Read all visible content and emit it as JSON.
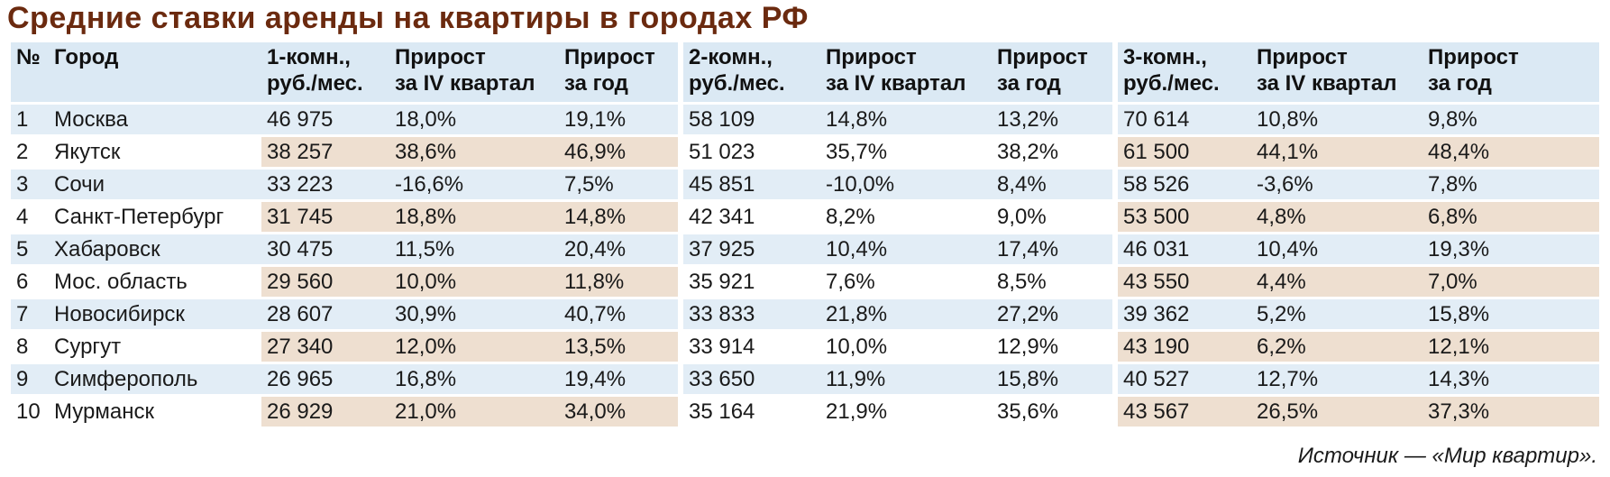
{
  "title": "Средние ставки аренды на квартиры в городах РФ",
  "source": "Источник — «Мир квартир».",
  "table": {
    "headers": [
      [
        "№",
        ""
      ],
      [
        "Город",
        ""
      ],
      [
        "1-комн.,",
        "руб./мес."
      ],
      [
        "Прирост",
        "за IV квартал"
      ],
      [
        "Прирост",
        "за год"
      ],
      [
        "2-комн.,",
        "руб./мес."
      ],
      [
        "Прирост",
        "за IV квартал"
      ],
      [
        "Прирост",
        "за год"
      ],
      [
        "3-комн.,",
        "руб./мес."
      ],
      [
        "Прирост",
        "за IV квартал"
      ],
      [
        "Прирост",
        "за год"
      ]
    ],
    "rows": [
      [
        "1",
        "Москва",
        "46 975",
        "18,0%",
        "19,1%",
        "58 109",
        "14,8%",
        "13,2%",
        "70 614",
        "10,8%",
        "9,8%"
      ],
      [
        "2",
        "Якутск",
        "38 257",
        "38,6%",
        "46,9%",
        "51 023",
        "35,7%",
        "38,2%",
        "61 500",
        "44,1%",
        "48,4%"
      ],
      [
        "3",
        "Сочи",
        "33 223",
        "-16,6%",
        "7,5%",
        "45 851",
        "-10,0%",
        "8,4%",
        "58 526",
        "-3,6%",
        "7,8%"
      ],
      [
        "4",
        "Санкт-Петербург",
        "31 745",
        "18,8%",
        "14,8%",
        "42 341",
        "8,2%",
        "9,0%",
        "53 500",
        "4,8%",
        "6,8%"
      ],
      [
        "5",
        "Хабаровск",
        "30 475",
        "11,5%",
        "20,4%",
        "37 925",
        "10,4%",
        "17,4%",
        "46 031",
        "10,4%",
        "19,3%"
      ],
      [
        "6",
        "Мос. область",
        "29 560",
        "10,0%",
        "11,8%",
        "35 921",
        "7,6%",
        "8,5%",
        "43 550",
        "4,4%",
        "7,0%"
      ],
      [
        "7",
        "Новосибирск",
        "28 607",
        "30,9%",
        "40,7%",
        "33 833",
        "21,8%",
        "27,2%",
        "39 362",
        "5,2%",
        "15,8%"
      ],
      [
        "8",
        "Сургут",
        "27 340",
        "12,0%",
        "13,5%",
        "33 914",
        "10,0%",
        "12,9%",
        "43 190",
        "6,2%",
        "12,1%"
      ],
      [
        "9",
        "Симферополь",
        "26 965",
        "16,8%",
        "19,4%",
        "33 650",
        "11,9%",
        "15,8%",
        "40 527",
        "12,7%",
        "14,3%"
      ],
      [
        "10",
        "Мурманск",
        "26 929",
        "21,0%",
        "34,0%",
        "35 164",
        "21,9%",
        "35,6%",
        "43 567",
        "26,5%",
        "37,3%"
      ]
    ]
  },
  "colors": {
    "title": "#6b2a0f",
    "header_bg": "#dbe9f4",
    "row_blue": "#e2edf6",
    "row_beige": "#eedfd0"
  }
}
